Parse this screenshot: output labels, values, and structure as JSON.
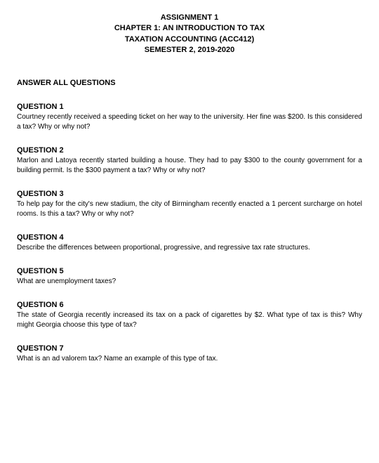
{
  "header": {
    "line1": "ASSIGNMENT 1",
    "line2": "CHAPTER 1: AN INTRODUCTION TO TAX",
    "line3": "TAXATION ACCOUNTING (ACC412)",
    "line4": "SEMESTER 2, 2019-2020"
  },
  "instruction": "ANSWER ALL QUESTIONS",
  "questions": [
    {
      "title": "QUESTION 1",
      "body": "Courtney recently received a speeding ticket on her way to the university. Her fine was $200. Is this considered a tax? Why or why not?"
    },
    {
      "title": "QUESTION 2",
      "body": "Marlon and Latoya recently started building a house. They had to pay $300 to the county government for a building permit. Is the $300 payment a tax? Why or why not?"
    },
    {
      "title": "QUESTION 3",
      "body": "To help pay for the city's new stadium, the city of Birmingham recently enacted a 1 percent surcharge on hotel rooms. Is this a tax? Why or why not?"
    },
    {
      "title": "QUESTION 4",
      "body": "Describe the differences between proportional, progressive, and regressive tax rate structures."
    },
    {
      "title": "QUESTION 5",
      "body": "What are unemployment taxes?"
    },
    {
      "title": "QUESTION 6",
      "body": "The state of Georgia recently increased its tax on a pack of cigarettes by $2. What type of tax is this? Why might Georgia choose this type of tax?"
    },
    {
      "title": "QUESTION 7",
      "body": "What is an ad valorem tax? Name an example of this type of tax."
    }
  ]
}
